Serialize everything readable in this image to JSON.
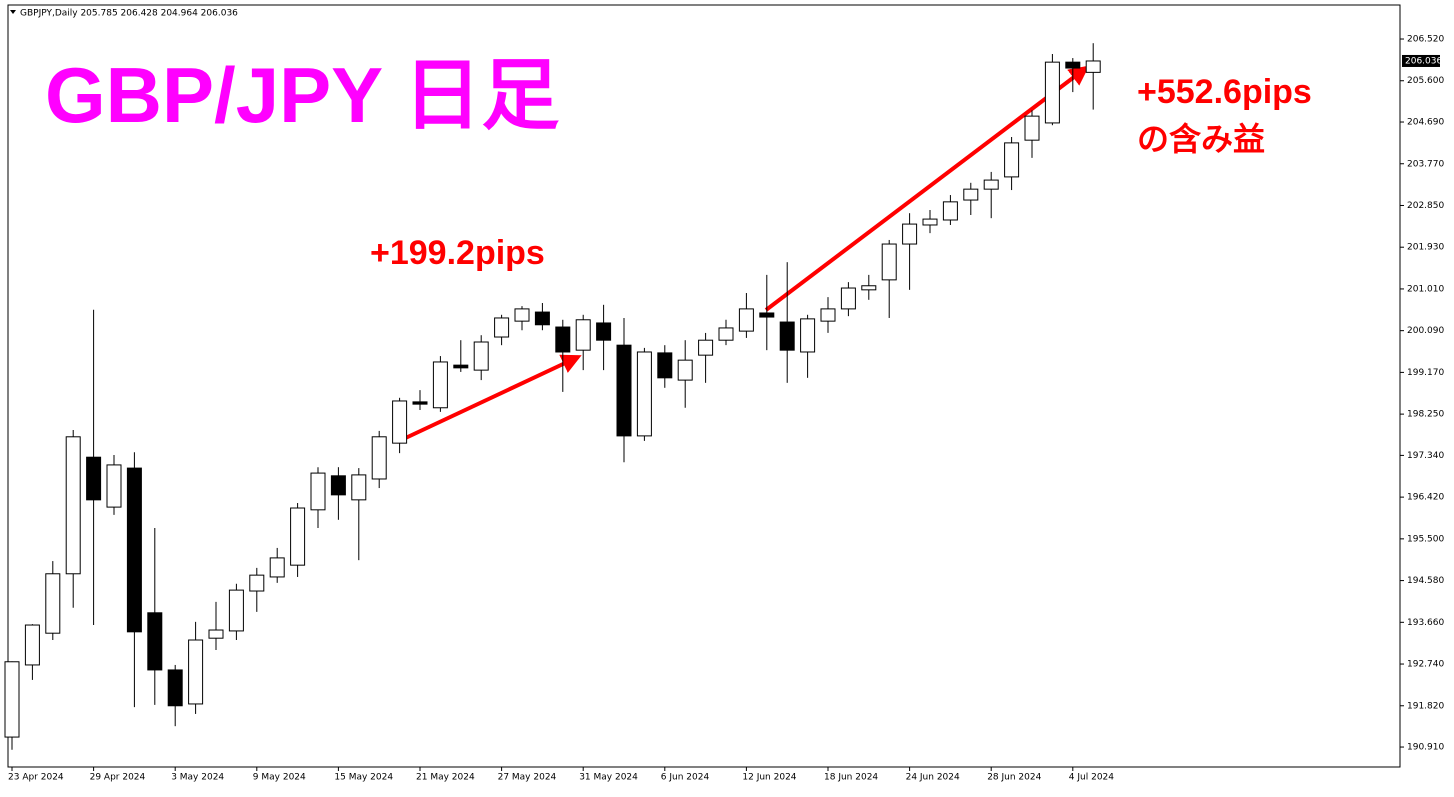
{
  "chart_data": {
    "type": "candlestick",
    "header": "GBPJPY,Daily  205.785 206.428 204.964 206.036",
    "title": "GBP/JPY 日足",
    "annotations": [
      "+199.2pips",
      "+552.6pips",
      "の含み益"
    ],
    "categories": [
      "23 Apr 2024",
      null,
      null,
      null,
      "29 Apr 2024",
      null,
      null,
      null,
      "3 May 2024",
      null,
      null,
      null,
      "9 May 2024",
      null,
      null,
      null,
      "15 May 2024",
      null,
      null,
      null,
      "21 May 2024",
      null,
      null,
      null,
      "27 May 2024",
      null,
      null,
      null,
      "31 May 2024",
      null,
      null,
      null,
      "6 Jun 2024",
      null,
      null,
      null,
      "12 Jun 2024",
      null,
      null,
      null,
      "18 Jun 2024",
      null,
      null,
      null,
      "24 Jun 2024",
      null,
      null,
      null,
      "28 Jun 2024",
      null,
      null,
      null,
      "4 Jul 2024",
      null
    ],
    "open": [
      191.13,
      192.72,
      193.42,
      194.73,
      197.3,
      196.2,
      197.06,
      193.87,
      192.61,
      191.86,
      193.31,
      193.47,
      194.35,
      194.66,
      194.92,
      196.14,
      196.89,
      196.36,
      196.82,
      197.61,
      198.52,
      198.39,
      199.33,
      199.22,
      199.95,
      200.3,
      200.5,
      200.17,
      199.66,
      200.26,
      199.77,
      197.77,
      199.6,
      199.0,
      199.55,
      199.88,
      200.08,
      200.48,
      200.28,
      199.62,
      200.3,
      200.57,
      200.99,
      201.21,
      202.0,
      202.42,
      202.53,
      202.97,
      203.21,
      203.48,
      204.29,
      204.67,
      206.01,
      205.785
    ],
    "high": [
      192.8,
      193.62,
      195.01,
      197.9,
      200.55,
      197.35,
      197.41,
      195.74,
      192.72,
      193.67,
      194.11,
      194.51,
      194.86,
      195.3,
      196.29,
      197.08,
      197.08,
      197.06,
      197.88,
      198.61,
      198.78,
      199.53,
      199.88,
      199.99,
      200.44,
      200.63,
      200.7,
      200.33,
      200.44,
      200.66,
      200.37,
      199.71,
      199.77,
      199.88,
      200.04,
      200.33,
      200.92,
      201.32,
      201.6,
      200.44,
      200.83,
      201.16,
      201.32,
      202.09,
      202.68,
      202.75,
      203.08,
      203.35,
      203.59,
      204.36,
      204.95,
      206.19,
      206.1,
      206.428
    ],
    "low": [
      190.85,
      192.39,
      193.27,
      193.98,
      193.6,
      196.03,
      191.79,
      191.84,
      191.37,
      191.64,
      193.05,
      193.27,
      193.89,
      194.53,
      194.66,
      195.74,
      195.92,
      195.03,
      196.62,
      197.39,
      198.34,
      198.3,
      199.18,
      199.0,
      199.77,
      200.1,
      200.1,
      198.74,
      199.22,
      199.22,
      197.19,
      197.66,
      198.83,
      198.39,
      198.94,
      199.77,
      199.93,
      199.66,
      198.94,
      199.05,
      200.04,
      200.41,
      200.77,
      200.37,
      200.99,
      202.24,
      202.42,
      202.64,
      202.57,
      203.19,
      203.9,
      204.62,
      205.35,
      204.964
    ],
    "close": [
      192.79,
      193.6,
      194.73,
      197.75,
      196.36,
      197.13,
      193.45,
      192.61,
      191.82,
      193.27,
      193.49,
      194.37,
      194.7,
      195.08,
      196.18,
      196.95,
      196.47,
      196.91,
      197.75,
      198.54,
      198.47,
      199.4,
      199.27,
      199.84,
      200.37,
      200.57,
      200.22,
      199.62,
      200.33,
      199.88,
      197.77,
      199.62,
      199.05,
      199.44,
      199.88,
      200.15,
      200.57,
      200.39,
      199.66,
      200.35,
      200.57,
      201.03,
      201.08,
      202.0,
      202.44,
      202.55,
      202.93,
      203.21,
      203.41,
      204.23,
      204.82,
      206.01,
      205.88,
      206.036
    ],
    "up_color": "#ffffff",
    "down_color": "#000000",
    "current_price": 206.036,
    "ylim": [
      190.47,
      207.27
    ],
    "yticks": [
      {
        "value": 206.52,
        "label": "206.520"
      },
      {
        "value": 205.6,
        "label": "205.600"
      },
      {
        "value": 204.69,
        "label": "204.690"
      },
      {
        "value": 203.77,
        "label": "203.770"
      },
      {
        "value": 202.85,
        "label": "202.850"
      },
      {
        "value": 201.93,
        "label": "201.930"
      },
      {
        "value": 201.01,
        "label": "201.010"
      },
      {
        "value": 200.09,
        "label": "200.090"
      },
      {
        "value": 199.17,
        "label": "199.170"
      },
      {
        "value": 198.25,
        "label": "198.250"
      },
      {
        "value": 197.34,
        "label": "197.340"
      },
      {
        "value": 196.42,
        "label": "196.420"
      },
      {
        "value": 195.5,
        "label": "195.500"
      },
      {
        "value": 194.58,
        "label": "194.580"
      },
      {
        "value": 193.66,
        "label": "193.660"
      },
      {
        "value": 192.74,
        "label": "192.740"
      },
      {
        "value": 191.82,
        "label": "191.820"
      },
      {
        "value": 190.91,
        "label": "190.910"
      }
    ],
    "grid": false
  }
}
